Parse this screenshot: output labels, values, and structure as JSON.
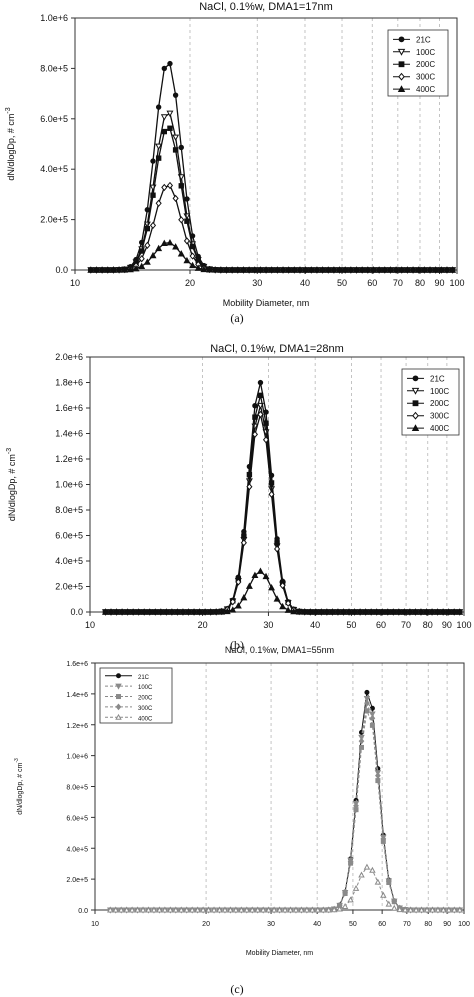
{
  "chart_data": [
    {
      "panel": "(a)",
      "type": "line",
      "title": "NaCl, 0.1%w, DMA1=17nm",
      "xlabel": "Mobility Diameter, nm",
      "ylabel": "dN/dlogDp, # cm",
      "ylabel_sup": "-3",
      "xscale": "log",
      "xlim": [
        10,
        100
      ],
      "ylim": [
        0,
        1000000
      ],
      "xticks": [
        10,
        20,
        30,
        40,
        50,
        60,
        70,
        80,
        90,
        100
      ],
      "xtick_labels": [
        "10",
        "20",
        "30",
        "40",
        "50",
        "60",
        "70",
        "80",
        "90",
        "100"
      ],
      "yticks": [
        0,
        200000,
        400000,
        600000,
        800000,
        1000000
      ],
      "ytick_labels": [
        "0.0",
        "2.0e+5",
        "4.0e+5",
        "6.0e+5",
        "8.0e+5",
        "1.0e+6"
      ],
      "grid": true,
      "legend_position": "top-right",
      "peak_x": 17.5,
      "sigma": 0.034,
      "series": [
        {
          "name": "21C",
          "peak": 830000,
          "marker": "filled-circle"
        },
        {
          "name": "100C",
          "peak": 630000,
          "marker": "open-triangle-down"
        },
        {
          "name": "200C",
          "peak": 570000,
          "marker": "filled-square"
        },
        {
          "name": "300C",
          "peak": 340000,
          "marker": "open-diamond"
        },
        {
          "name": "400C",
          "peak": 110000,
          "marker": "filled-triangle"
        }
      ],
      "caption": "(a)"
    },
    {
      "panel": "(b)",
      "type": "line",
      "title": "NaCl, 0.1%w, DMA1=28nm",
      "xlabel": "",
      "ylabel": "dN/dlogDp, # cm",
      "ylabel_sup": "-3",
      "xscale": "log",
      "xlim": [
        10,
        100
      ],
      "ylim": [
        0,
        2000000
      ],
      "xticks": [
        10,
        20,
        30,
        40,
        50,
        60,
        70,
        80,
        90,
        100
      ],
      "xtick_labels": [
        "10",
        "20",
        "30",
        "40",
        "50",
        "60",
        "70",
        "80",
        "90",
        "100"
      ],
      "yticks": [
        0,
        200000,
        400000,
        600000,
        800000,
        1000000,
        1200000,
        1400000,
        1600000,
        1800000,
        2000000
      ],
      "ytick_labels": [
        "0.0",
        "2.0e+5",
        "4.0e+5",
        "6.0e+5",
        "8.0e+5",
        "1.0e+6",
        "1.2e+6",
        "1.4e+6",
        "1.6e+6",
        "1.8e+6",
        "2.0e+6"
      ],
      "grid": true,
      "legend_position": "top-right",
      "peak_x": 28.5,
      "sigma": 0.03,
      "series": [
        {
          "name": "21C",
          "peak": 1800000,
          "marker": "filled-circle"
        },
        {
          "name": "100C",
          "peak": 1620000,
          "marker": "open-triangle-down"
        },
        {
          "name": "200C",
          "peak": 1700000,
          "marker": "filled-square"
        },
        {
          "name": "300C",
          "peak": 1550000,
          "marker": "open-diamond"
        },
        {
          "name": "400C",
          "peak": 320000,
          "marker": "filled-triangle"
        }
      ],
      "caption": "(b)"
    },
    {
      "panel": "(c)",
      "type": "line",
      "title": "NaCl, 0.1%w, DMA1=55nm",
      "xlabel": "Mobility Diameter, nm",
      "ylabel": "dN/dlogDp, # cm",
      "ylabel_sup": "-3",
      "xscale": "log",
      "xlim": [
        10,
        100
      ],
      "ylim": [
        0,
        1600000
      ],
      "xticks": [
        10,
        20,
        30,
        40,
        50,
        60,
        70,
        80,
        90,
        100
      ],
      "xtick_labels": [
        "10",
        "20",
        "30",
        "40",
        "50",
        "60",
        "70",
        "80",
        "90",
        "100"
      ],
      "yticks": [
        0,
        200000,
        400000,
        600000,
        800000,
        1000000,
        1200000,
        1400000,
        1600000
      ],
      "ytick_labels": [
        "0.0",
        "2.0e+5",
        "4.0e+5",
        "6.0e+5",
        "8.0e+5",
        "1.0e+6",
        "1.2e+6",
        "1.4e+6",
        "1.6e+6"
      ],
      "grid": true,
      "legend_position": "top-left",
      "peak_x": 55,
      "sigma": 0.028,
      "series": [
        {
          "name": "21C",
          "peak": 1420000,
          "marker": "filled-circle"
        },
        {
          "name": "100C",
          "peak": 1380000,
          "marker": "filled-triangle-down"
        },
        {
          "name": "200C",
          "peak": 1300000,
          "marker": "filled-square"
        },
        {
          "name": "300C",
          "peak": 1350000,
          "marker": "filled-diamond"
        },
        {
          "name": "400C",
          "peak": 280000,
          "marker": "open-triangle"
        }
      ],
      "caption": "(c)"
    }
  ],
  "colors": {
    "dark": "#111111",
    "grey": "#8a8a8a",
    "grid": "#b5b5b5"
  }
}
